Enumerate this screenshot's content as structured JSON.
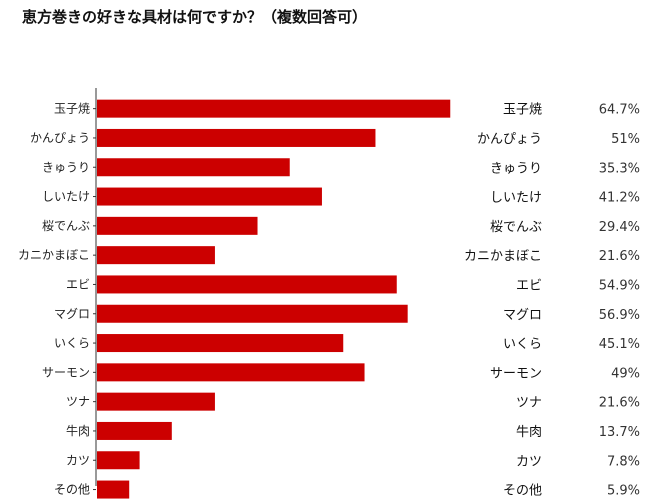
{
  "chart_data": {
    "type": "bar",
    "orientation": "horizontal",
    "title": "恵方巻きの好きな具材は何ですか？（複数回答可）",
    "categories": [
      "玉子焼",
      "かんぴょう",
      "きゅうり",
      "しいたけ",
      "桜でんぶ",
      "カニかまぼこ",
      "エビ",
      "マグロ",
      "いくら",
      "サーモン",
      "ツナ",
      "牛肉",
      "カツ",
      "その他"
    ],
    "values": [
      64.7,
      51,
      35.3,
      41.2,
      29.4,
      21.6,
      54.9,
      56.9,
      45.1,
      49,
      21.6,
      13.7,
      7.8,
      5.9
    ],
    "value_labels": [
      "64.7%",
      "51%",
      "35.3%",
      "41.2%",
      "29.4%",
      "21.6%",
      "54.9%",
      "56.9%",
      "45.1%",
      "49%",
      "21.6%",
      "13.7%",
      "7.8%",
      "5.9%"
    ],
    "xlim": [
      0,
      100
    ],
    "bar_color": "#cc0000",
    "grid": false,
    "legend": "none"
  }
}
